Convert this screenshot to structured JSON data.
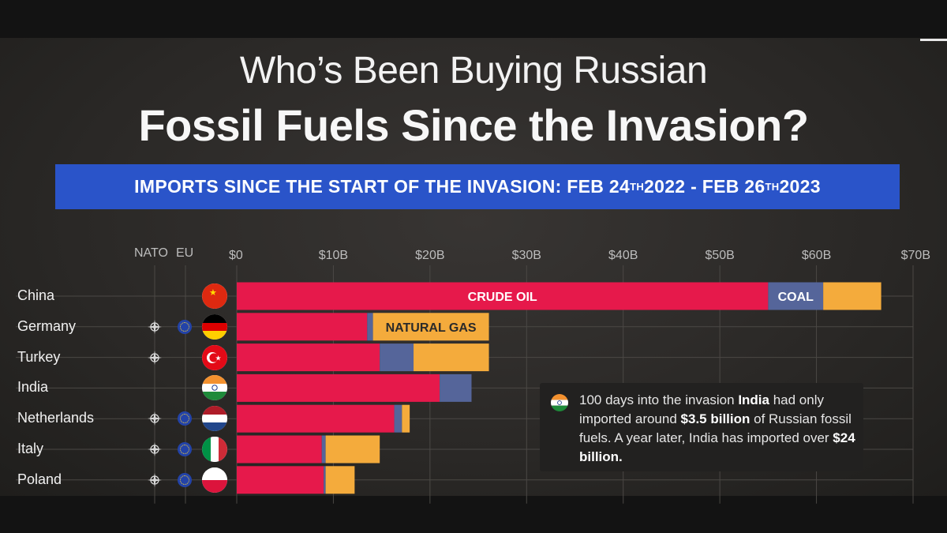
{
  "title": {
    "line1": "Who’s Been Buying Russian",
    "line2": "Fossil Fuels Since the Invasion?"
  },
  "banner": {
    "prefix": "IMPORTS SINCE THE START OF THE INVASION:  FEB 24",
    "sup1": "TH",
    "middle": " 2022 - FEB 26",
    "sup2": "TH",
    "suffix": " 2023"
  },
  "headers": {
    "nato": "NATO",
    "eu": "EU"
  },
  "colors": {
    "crude_oil": "#e6194b",
    "coal": "#55659a",
    "natural_gas": "#f4ab3c",
    "banner": "#2a54c9"
  },
  "countries": [
    {
      "name": "China",
      "flag": "china-flag",
      "nato": false,
      "eu": false
    },
    {
      "name": "Germany",
      "flag": "germany-flag",
      "nato": true,
      "eu": true
    },
    {
      "name": "Turkey",
      "flag": "turkey-flag",
      "nato": true,
      "eu": false
    },
    {
      "name": "India",
      "flag": "india-flag",
      "nato": false,
      "eu": false
    },
    {
      "name": "Netherlands",
      "flag": "netherlands-flag",
      "nato": true,
      "eu": true
    },
    {
      "name": "Italy",
      "flag": "italy-flag",
      "nato": true,
      "eu": true
    },
    {
      "name": "Poland",
      "flag": "poland-flag",
      "nato": true,
      "eu": true
    }
  ],
  "chart_data": {
    "type": "bar",
    "orientation": "horizontal",
    "stacked": true,
    "title": "Who’s Been Buying Russian Fossil Fuels Since the Invasion?",
    "categories": [
      "China",
      "Germany",
      "Turkey",
      "India",
      "Netherlands",
      "Italy",
      "Poland"
    ],
    "series": [
      {
        "name": "CRUDE OIL",
        "values": [
          55.0,
          13.5,
          14.8,
          21.0,
          16.3,
          8.8,
          9.0
        ]
      },
      {
        "name": "COAL",
        "values": [
          5.7,
          0.6,
          3.5,
          3.3,
          0.8,
          0.4,
          0.2
        ]
      },
      {
        "name": "NATURAL GAS",
        "values": [
          6.0,
          12.0,
          7.8,
          0.0,
          0.8,
          5.6,
          3.0
        ]
      }
    ],
    "xlim": [
      0,
      70
    ],
    "xticks": [
      "$0",
      "$10B",
      "$20B",
      "$30B",
      "$40B",
      "$50B",
      "$60B",
      "$70B"
    ],
    "grid": true,
    "legend": "inline labels on bars"
  },
  "callout": {
    "text1": "100 days into the invasion ",
    "bold1": "India",
    "text2": " had only imported around ",
    "bold2": "$3.5 billion",
    "text3": " of Russian fossil fuels. A year later, India has imported over ",
    "bold3": "$24 billion."
  }
}
